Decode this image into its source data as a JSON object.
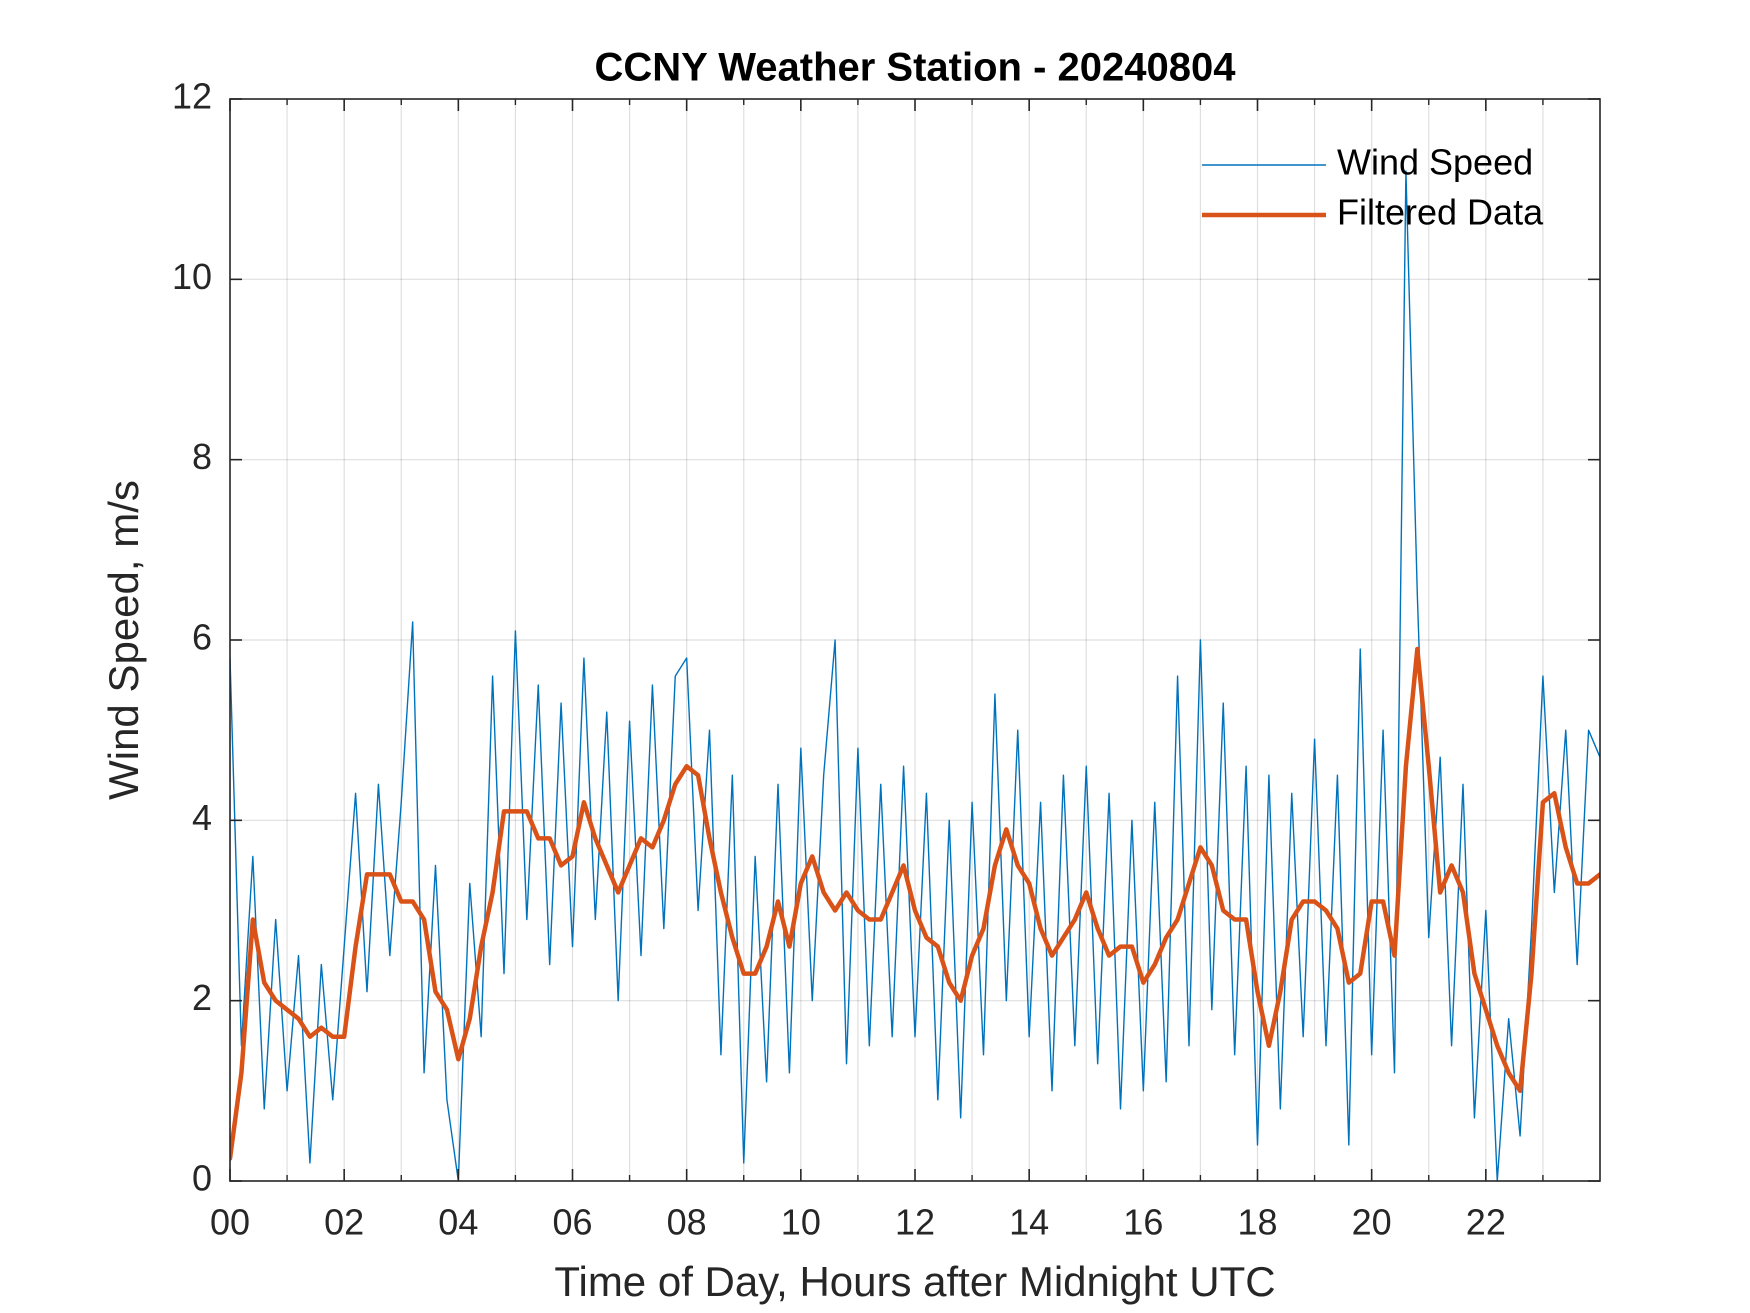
{
  "chart_data": {
    "type": "line",
    "title": "CCNY Weather Station - 20240804",
    "xlabel": "Time of Day, Hours after Midnight UTC",
    "ylabel": "Wind Speed, m/s",
    "x": [
      0,
      0.2,
      0.4,
      0.6,
      0.8,
      1,
      1.2,
      1.4,
      1.6,
      1.8,
      2,
      2.2,
      2.4,
      2.6,
      2.8,
      3,
      3.2,
      3.4,
      3.6,
      3.8,
      4,
      4.2,
      4.4,
      4.6,
      4.8,
      5,
      5.2,
      5.4,
      5.6,
      5.8,
      6,
      6.2,
      6.4,
      6.6,
      6.8,
      7,
      7.2,
      7.4,
      7.6,
      7.8,
      8,
      8.2,
      8.4,
      8.6,
      8.8,
      9,
      9.2,
      9.4,
      9.6,
      9.8,
      10,
      10.2,
      10.4,
      10.6,
      10.8,
      11,
      11.2,
      11.4,
      11.6,
      11.8,
      12,
      12.2,
      12.4,
      12.6,
      12.8,
      13,
      13.2,
      13.4,
      13.6,
      13.8,
      14,
      14.2,
      14.4,
      14.6,
      14.8,
      15,
      15.2,
      15.4,
      15.6,
      15.8,
      16,
      16.2,
      16.4,
      16.6,
      16.8,
      17,
      17.2,
      17.4,
      17.6,
      17.8,
      18,
      18.2,
      18.4,
      18.6,
      18.8,
      19,
      19.2,
      19.4,
      19.6,
      19.8,
      20,
      20.2,
      20.4,
      20.6,
      20.8,
      21,
      21.2,
      21.4,
      21.6,
      21.8,
      22,
      22.2,
      22.4,
      22.6,
      22.8,
      23,
      23.2,
      23.4,
      23.6,
      23.8,
      24
    ],
    "series": [
      {
        "name": "Wind Speed",
        "color": "#0072BD",
        "width": 1.4,
        "values": [
          5.8,
          1.5,
          3.6,
          0.8,
          2.9,
          1.0,
          2.5,
          0.2,
          2.4,
          0.9,
          2.6,
          4.3,
          2.1,
          4.4,
          2.5,
          4.2,
          6.2,
          1.2,
          3.5,
          0.9,
          0.0,
          3.3,
          1.6,
          5.6,
          2.3,
          6.1,
          2.9,
          5.5,
          2.4,
          5.3,
          2.6,
          5.8,
          2.9,
          5.2,
          2.0,
          5.1,
          2.5,
          5.5,
          2.8,
          5.6,
          5.8,
          3.0,
          5.0,
          1.4,
          4.5,
          0.2,
          3.6,
          1.1,
          4.4,
          1.2,
          4.8,
          2.0,
          4.5,
          6.0,
          1.3,
          4.8,
          1.5,
          4.4,
          1.6,
          4.6,
          1.6,
          4.3,
          0.9,
          4.0,
          0.7,
          4.2,
          1.4,
          5.4,
          2.0,
          5.0,
          1.6,
          4.2,
          1.0,
          4.5,
          1.5,
          4.6,
          1.3,
          4.3,
          0.8,
          4.0,
          1.0,
          4.2,
          1.1,
          5.6,
          1.5,
          6.0,
          1.9,
          5.3,
          1.4,
          4.6,
          0.4,
          4.5,
          0.8,
          4.3,
          1.6,
          4.9,
          1.5,
          4.5,
          0.4,
          5.9,
          1.4,
          5.0,
          1.2,
          11.2,
          6.5,
          2.7,
          4.7,
          1.5,
          4.4,
          0.7,
          3.0,
          0.0,
          1.8,
          0.5,
          2.8,
          5.6,
          3.2,
          5.0,
          2.4,
          5.0,
          4.7
        ]
      },
      {
        "name": "Filtered Data",
        "color": "#D95319",
        "width": 4.5,
        "values": [
          0.25,
          1.2,
          2.9,
          2.2,
          2.0,
          1.9,
          1.8,
          1.6,
          1.7,
          1.6,
          1.6,
          2.6,
          3.4,
          3.4,
          3.4,
          3.1,
          3.1,
          2.9,
          2.1,
          1.9,
          1.35,
          1.8,
          2.6,
          3.2,
          4.1,
          4.1,
          4.1,
          3.8,
          3.8,
          3.5,
          3.6,
          4.2,
          3.8,
          3.5,
          3.2,
          3.5,
          3.8,
          3.7,
          4.0,
          4.4,
          4.6,
          4.5,
          3.8,
          3.2,
          2.7,
          2.3,
          2.3,
          2.6,
          3.1,
          2.6,
          3.3,
          3.6,
          3.2,
          3.0,
          3.2,
          3.0,
          2.9,
          2.9,
          3.2,
          3.5,
          3.0,
          2.7,
          2.6,
          2.2,
          2.0,
          2.5,
          2.8,
          3.5,
          3.9,
          3.5,
          3.3,
          2.8,
          2.5,
          2.7,
          2.9,
          3.2,
          2.8,
          2.5,
          2.6,
          2.6,
          2.2,
          2.4,
          2.7,
          2.9,
          3.3,
          3.7,
          3.5,
          3.0,
          2.9,
          2.9,
          2.1,
          1.5,
          2.1,
          2.9,
          3.1,
          3.1,
          3.0,
          2.8,
          2.2,
          2.3,
          3.1,
          3.1,
          2.5,
          4.6,
          5.9,
          4.6,
          3.2,
          3.5,
          3.2,
          2.3,
          1.9,
          1.5,
          1.2,
          1.0,
          2.3,
          4.2,
          4.3,
          3.7,
          3.3,
          3.3,
          3.4
        ]
      }
    ],
    "xlim": [
      0,
      24
    ],
    "xticks": [
      {
        "value": 0,
        "label": "00"
      },
      {
        "value": 2,
        "label": "02"
      },
      {
        "value": 4,
        "label": "04"
      },
      {
        "value": 6,
        "label": "06"
      },
      {
        "value": 8,
        "label": "08"
      },
      {
        "value": 10,
        "label": "10"
      },
      {
        "value": 12,
        "label": "12"
      },
      {
        "value": 14,
        "label": "14"
      },
      {
        "value": 16,
        "label": "16"
      },
      {
        "value": 18,
        "label": "18"
      },
      {
        "value": 20,
        "label": "20"
      },
      {
        "value": 22,
        "label": "22"
      }
    ],
    "xminorticks": [
      1,
      3,
      5,
      7,
      9,
      11,
      13,
      15,
      17,
      19,
      21,
      23
    ],
    "ylim": [
      0,
      12
    ],
    "yticks": [
      0,
      2,
      4,
      6,
      8,
      10,
      12
    ],
    "grid": true,
    "legend": "northeast"
  }
}
